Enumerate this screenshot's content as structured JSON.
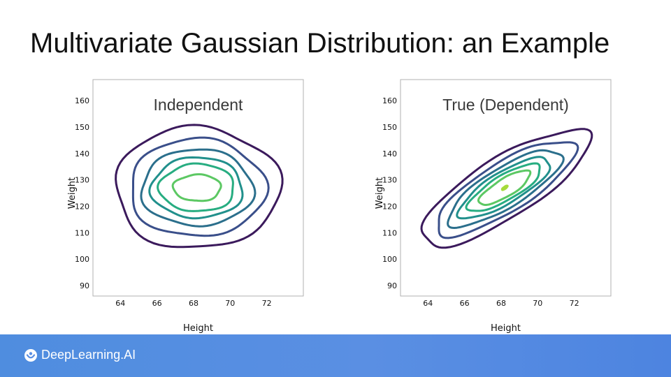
{
  "slide": {
    "title": "Multivariate Gaussian Distribution: an Example"
  },
  "footer": {
    "brand": "DeepLearning.AI",
    "logo_icon": "deeplearning-ai-logo-icon",
    "background_color": "#5a8fe3"
  },
  "colors": {
    "contours": [
      "#3b1a5c",
      "#3a4f8a",
      "#2b6f8c",
      "#21908c",
      "#27ad81",
      "#5cc863",
      "#a6db3a"
    ]
  },
  "chart_data": [
    {
      "type": "contour",
      "title": "Independent",
      "xlabel": "Height",
      "ylabel": "Weight",
      "xlim": [
        62.5,
        74
      ],
      "ylim": [
        86,
        168
      ],
      "xticks": [
        64,
        66,
        68,
        70,
        72
      ],
      "yticks": [
        90,
        100,
        110,
        120,
        130,
        140,
        150,
        160
      ],
      "grid": false,
      "center": [
        68.2,
        127
      ],
      "correlation": 0,
      "levels": [
        {
          "rx": 4.5,
          "ry": 23
        },
        {
          "rx": 3.7,
          "ry": 18.5
        },
        {
          "rx": 3.05,
          "ry": 14.5
        },
        {
          "rx": 2.5,
          "ry": 11.5
        },
        {
          "rx": 2.05,
          "ry": 9.0
        },
        {
          "rx": 1.3,
          "ry": 5.0
        }
      ]
    },
    {
      "type": "contour",
      "title": "True (Dependent)",
      "xlabel": "Height",
      "ylabel": "Weight",
      "xlim": [
        62.5,
        74
      ],
      "ylim": [
        86,
        168
      ],
      "xticks": [
        64,
        66,
        68,
        70,
        72
      ],
      "yticks": [
        90,
        100,
        110,
        120,
        130,
        140,
        150,
        160
      ],
      "grid": false,
      "center": [
        68.2,
        127
      ],
      "correlation": 0.8,
      "levels": [
        {
          "rx": 4.6,
          "ry": 22
        },
        {
          "rx": 3.8,
          "ry": 18
        },
        {
          "rx": 3.1,
          "ry": 14.5
        },
        {
          "rx": 2.5,
          "ry": 11.5
        },
        {
          "rx": 2.0,
          "ry": 9.0
        },
        {
          "rx": 1.4,
          "ry": 6.5
        },
        {
          "rx": 0.15,
          "ry": 0.8
        }
      ]
    }
  ]
}
